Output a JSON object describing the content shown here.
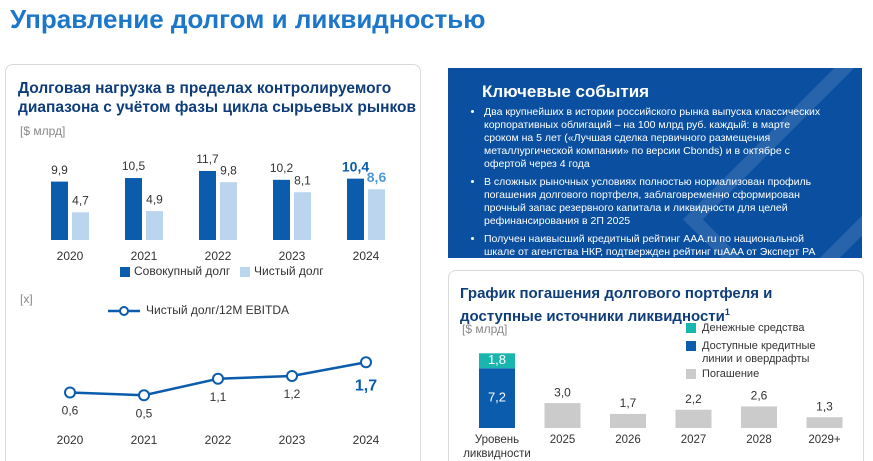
{
  "title": "Управление долгом и ликвидностью",
  "chart_data": [
    {
      "type": "bar",
      "title": "Долговая нагрузка в пределах контролируемого диапазона с учётом фазы цикла сырьевых рынков",
      "unit": "[$ млрд]",
      "categories": [
        "2020",
        "2021",
        "2022",
        "2023",
        "2024"
      ],
      "series": [
        {
          "name": "Совокупный долг",
          "color": "#0b5cad",
          "values": [
            9.9,
            10.5,
            11.7,
            10.2,
            10.4
          ],
          "value_labels": [
            "9,9",
            "10,5",
            "11,7",
            "10,2",
            "10,4"
          ]
        },
        {
          "name": "Чистый долг",
          "color": "#bcd5ee",
          "values": [
            4.7,
            4.9,
            9.8,
            8.1,
            8.6
          ],
          "value_labels": [
            "4,7",
            "4,9",
            "9,8",
            "8,1",
            "8,6"
          ]
        }
      ]
    },
    {
      "type": "line",
      "unit": "[x]",
      "categories": [
        "2020",
        "2021",
        "2022",
        "2023",
        "2024"
      ],
      "series": [
        {
          "name": "Чистый долг/12M EBITDA",
          "color": "#0b5cad",
          "values": [
            0.6,
            0.5,
            1.1,
            1.2,
            1.7
          ],
          "value_labels": [
            "0,6",
            "0,5",
            "1,1",
            "1,2",
            "1,7"
          ]
        }
      ]
    },
    {
      "type": "stacked-bar",
      "title": "График погашения долгового портфеля и доступные источники ликвидности",
      "title_footnote": "1",
      "unit": "[$ млрд]",
      "categories": [
        "Уровень ликвидности",
        "2025",
        "2026",
        "2027",
        "2028",
        "2029+"
      ],
      "series": [
        {
          "name": "Денежные средства",
          "color": "#1bb5b0",
          "values": [
            1.8,
            null,
            null,
            null,
            null,
            null
          ],
          "value_labels": [
            "1,8",
            null,
            null,
            null,
            null,
            null
          ]
        },
        {
          "name": "Доступные кредитные линии и овердрафты",
          "color": "#0b5cad",
          "values": [
            7.2,
            null,
            null,
            null,
            null,
            null
          ],
          "value_labels": [
            "7,2",
            null,
            null,
            null,
            null,
            null
          ]
        },
        {
          "name": "Погашение",
          "color": "#cbcbcb",
          "values": [
            null,
            3.0,
            1.7,
            2.2,
            2.6,
            1.3
          ],
          "value_labels": [
            null,
            "3,0",
            "1,7",
            "2,2",
            "2,6",
            "1,3"
          ]
        }
      ]
    }
  ],
  "key_events": {
    "title": "Ключевые события",
    "items": [
      "Два крупнейших в истории российского рынка выпуска классических корпоративных облигаций – на 100 млрд руб. каждый: в марте сроком на 5 лет («Лучшая сделка первичного размещения металлургической компании» по версии Cbonds) и в октябре с офертой через 4 года",
      "В сложных рыночных условиях полностью нормализован профиль погашения долгового портфеля, заблаговременно сформирован прочный запас резервного капитала и ликвидности для целей рефинансирования в 2П 2025",
      "Получен наивысший кредитный рейтинг AAA.ru по национальной шкале от агентства НКР, подтвержден рейтинг ruAAA от Эксперт РА"
    ]
  }
}
